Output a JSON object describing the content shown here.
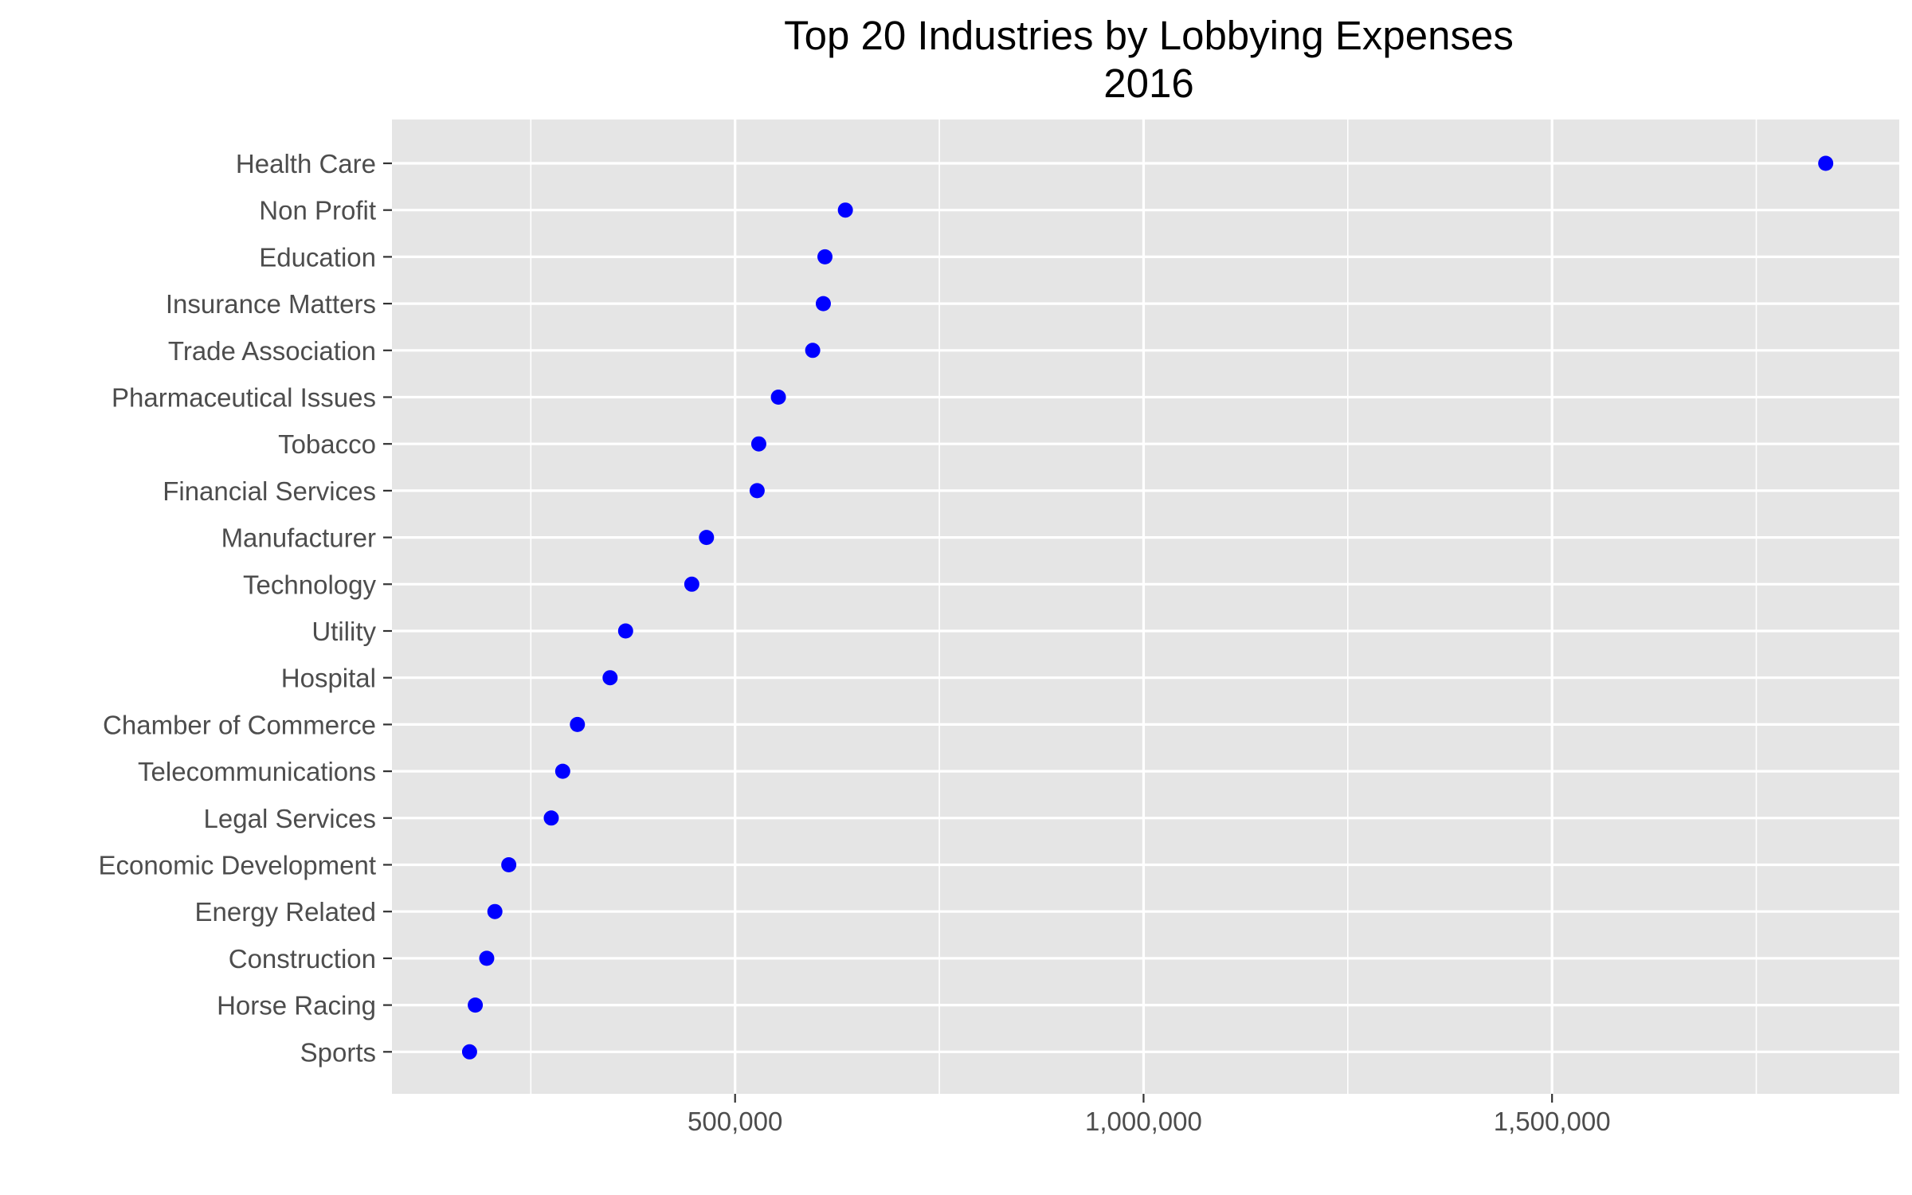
{
  "chart_data": {
    "type": "scatter",
    "title": "Top 20 Industries by Lobbying Expenses",
    "subtitle": "2016",
    "xlabel": "",
    "ylabel": "",
    "xlim": [
      80000,
      1925000
    ],
    "x_ticks": [
      500000,
      1000000,
      1500000
    ],
    "x_tick_labels": [
      "500,000",
      "1,000,000",
      "1,500,000"
    ],
    "grid": true,
    "legend": "none",
    "point_color": "#0000ff",
    "panel_background": "#e5e5e5",
    "categories": [
      "Health Care",
      "Non Profit",
      "Education",
      "Insurance Matters",
      "Trade Association",
      "Pharmaceutical Issues",
      "Tobacco",
      "Financial Services",
      "Manufacturer",
      "Technology",
      "Utility",
      "Hospital",
      "Chamber of Commerce",
      "Telecommunications",
      "Legal Services",
      "Economic Development",
      "Energy Related",
      "Construction",
      "Horse Racing",
      "Sports"
    ],
    "values": [
      1835000,
      635000,
      610000,
      608000,
      595000,
      553000,
      529000,
      527000,
      465000,
      447000,
      366000,
      347000,
      307000,
      289000,
      275000,
      223000,
      206000,
      196000,
      182000,
      175000
    ]
  }
}
